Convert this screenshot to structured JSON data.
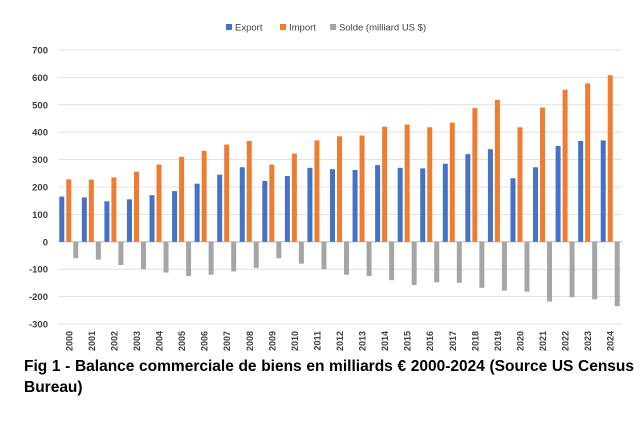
{
  "chart_data": {
    "type": "bar",
    "categories": [
      "2000",
      "2001",
      "2002",
      "2003",
      "2004",
      "2005",
      "2006",
      "2007",
      "2008",
      "2009",
      "2010",
      "2011",
      "2012",
      "2013",
      "2014",
      "2015",
      "2016",
      "2017",
      "2018",
      "2019",
      "2020",
      "2021",
      "2022",
      "2023",
      "2024"
    ],
    "series": [
      {
        "name": "Export",
        "color": "#4472c4",
        "values": [
          165,
          162,
          148,
          155,
          170,
          185,
          212,
          245,
          272,
          222,
          240,
          270,
          265,
          262,
          280,
          270,
          268,
          285,
          320,
          338,
          232,
          272,
          350,
          368,
          370
        ]
      },
      {
        "name": "Import",
        "color": "#ed7d31",
        "values": [
          228,
          227,
          235,
          256,
          282,
          310,
          332,
          355,
          368,
          282,
          322,
          370,
          385,
          388,
          420,
          428,
          418,
          435,
          488,
          518,
          418,
          490,
          555,
          578,
          608
        ]
      },
      {
        "name": "Solde (milliard US $)",
        "color": "#a5a5a5",
        "values": [
          -60,
          -65,
          -85,
          -100,
          -112,
          -125,
          -120,
          -108,
          -95,
          -60,
          -80,
          -100,
          -120,
          -125,
          -140,
          -158,
          -148,
          -150,
          -168,
          -178,
          -182,
          -218,
          -202,
          -210,
          -235
        ]
      }
    ],
    "y_ticks": [
      "700",
      "600",
      "500",
      "400",
      "300",
      "200",
      "100",
      "0",
      "-100",
      "-200",
      "-300"
    ],
    "ylim": [
      -300,
      700
    ],
    "grid": true,
    "legend_position": "top"
  },
  "caption": "Fig 1 - Balance commerciale de biens en milliards € 2000-2024 (Source US Census Bureau)"
}
